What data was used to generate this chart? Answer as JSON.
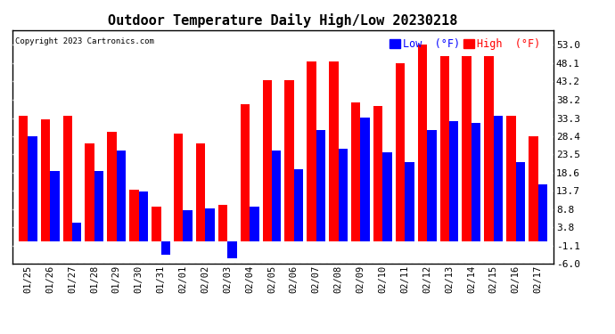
{
  "title": "Outdoor Temperature Daily High/Low 20230218",
  "copyright": "Copyright 2023 Cartronics.com",
  "legend_low": "Low  (°F)",
  "legend_high": "High  (°F)",
  "dates": [
    "01/25",
    "01/26",
    "01/27",
    "01/28",
    "01/29",
    "01/30",
    "01/31",
    "02/01",
    "02/02",
    "02/03",
    "02/04",
    "02/05",
    "02/06",
    "02/07",
    "02/08",
    "02/09",
    "02/10",
    "02/11",
    "02/12",
    "02/13",
    "02/14",
    "02/15",
    "02/16",
    "02/17"
  ],
  "highs": [
    34.0,
    33.0,
    34.0,
    26.5,
    29.5,
    14.0,
    9.5,
    29.0,
    26.5,
    10.0,
    37.0,
    43.5,
    43.5,
    48.5,
    48.5,
    37.5,
    36.5,
    48.0,
    53.0,
    50.0,
    50.0,
    50.0,
    34.0,
    28.5
  ],
  "lows": [
    28.5,
    19.0,
    5.0,
    19.0,
    24.5,
    13.5,
    -3.5,
    8.5,
    9.0,
    -4.5,
    9.5,
    24.5,
    19.5,
    30.0,
    25.0,
    33.5,
    24.0,
    21.5,
    30.0,
    32.5,
    32.0,
    34.0,
    21.5,
    15.5
  ],
  "ylim_min": -6.0,
  "ylim_max": 57.0,
  "yticks": [
    -6.0,
    -1.1,
    3.8,
    8.8,
    13.7,
    18.6,
    23.5,
    28.4,
    33.3,
    38.2,
    43.2,
    48.1,
    53.0
  ],
  "high_color": "#ff0000",
  "low_color": "#0000ff",
  "bg_color": "#ffffff",
  "grid_color": "#bbbbbb",
  "bar_width": 0.42
}
